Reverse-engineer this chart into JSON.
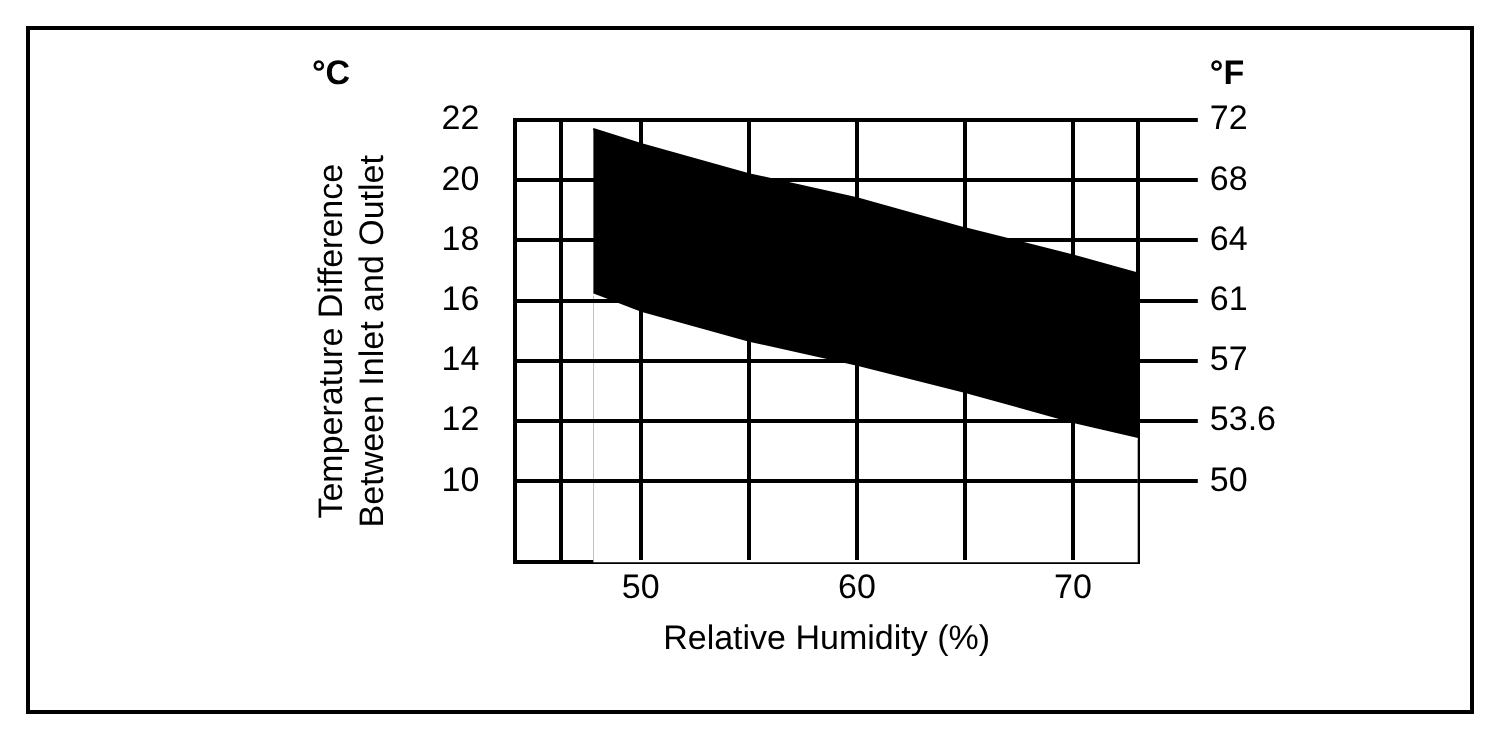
{
  "chart_data": {
    "type": "area",
    "xlabel": "Relative Humidity (%)",
    "ylabel": "Temperature Difference\nBetween Inlet and Outlet",
    "y2label": "°F",
    "annotations": [
      "°C"
    ],
    "x": [
      47.8,
      50,
      55,
      60,
      65,
      70,
      73
    ],
    "series": [
      {
        "color": "#000000",
        "values": [
          21.7,
          21.2,
          20.2,
          19.4,
          18.4,
          17.5,
          16.9
        ]
      },
      {
        "color": "#ffffff",
        "values": [
          16.2,
          15.6,
          14.6,
          13.8,
          12.9,
          11.9,
          11.4
        ]
      }
    ],
    "xlim": [
      44.2,
      73
    ],
    "xticks": [
      {
        "value": 46.3,
        "label": null
      },
      50,
      {
        "value": 55,
        "label": null
      },
      60,
      {
        "value": 65,
        "label": null
      },
      70
    ],
    "ylim": [
      7.3,
      22
    ],
    "yticks": [
      10,
      12,
      14,
      16,
      18,
      20,
      22
    ],
    "y2lim": [
      45.14,
      71.6
    ],
    "y2ticks": [
      {
        "value": 50,
        "label": "50"
      },
      {
        "value": 53.6,
        "label": "53.6"
      },
      {
        "value": 57.2,
        "label": "57"
      },
      {
        "value": 60.8,
        "label": "61"
      },
      {
        "value": 64.4,
        "label": "64"
      },
      {
        "value": 68,
        "label": "68"
      },
      {
        "value": 71.6,
        "label": "72"
      }
    ],
    "grid": true,
    "legend": false
  }
}
